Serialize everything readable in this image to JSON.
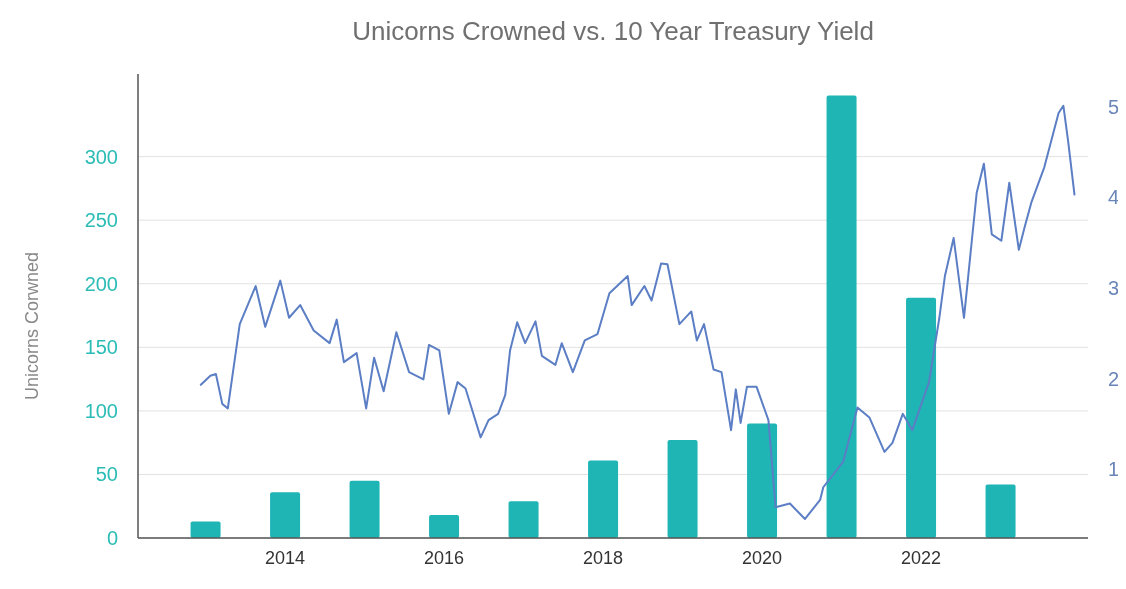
{
  "chart_data": {
    "type": "bar",
    "title": "Unicorns Crowned vs. 10 Year Treasury Yield",
    "ylabel": "Unicorns Corwned",
    "xlim": [
      2012.15,
      2024.1
    ],
    "xticks": [
      2014,
      2016,
      2018,
      2020,
      2022
    ],
    "ylim": [
      0,
      365
    ],
    "yticks": [
      0,
      50,
      100,
      150,
      200,
      250,
      300
    ],
    "y2lim": [
      0.24,
      5.36
    ],
    "y2ticks": [
      1,
      2,
      3,
      4,
      5
    ],
    "grid": "y",
    "series": [
      {
        "color": "#1fb5b5",
        "x": [
          2013,
          2014,
          2015,
          2016,
          2017,
          2018,
          2019,
          2020,
          2021,
          2022,
          2023
        ],
        "values": [
          13,
          36,
          45,
          18,
          29,
          61,
          77,
          90,
          348,
          189,
          42
        ]
      },
      {
        "type": "line",
        "axis": "y2",
        "color": "#5b7ec4",
        "x": [
          2012.94,
          2013.06,
          2013.13,
          2013.21,
          2013.28,
          2013.43,
          2013.63,
          2013.75,
          2013.94,
          2014.05,
          2014.19,
          2014.36,
          2014.56,
          2014.65,
          2014.74,
          2014.9,
          2015.02,
          2015.12,
          2015.24,
          2015.4,
          2015.56,
          2015.74,
          2015.81,
          2015.94,
          2016.06,
          2016.17,
          2016.27,
          2016.46,
          2016.56,
          2016.68,
          2016.77,
          2016.83,
          2016.92,
          2017.02,
          2017.15,
          2017.23,
          2017.4,
          2017.48,
          2017.62,
          2017.77,
          2017.93,
          2018.08,
          2018.31,
          2018.36,
          2018.52,
          2018.61,
          2018.73,
          2018.81,
          2018.96,
          2019.11,
          2019.18,
          2019.27,
          2019.39,
          2019.49,
          2019.61,
          2019.67,
          2019.73,
          2019.81,
          2019.93,
          2020.08,
          2020.17,
          2020.35,
          2020.54,
          2020.73,
          2020.77,
          2021.02,
          2021.2,
          2021.35,
          2021.54,
          2021.64,
          2021.77,
          2021.89,
          2022.1,
          2022.23,
          2022.3,
          2022.41,
          2022.54,
          2022.7,
          2022.79,
          2022.89,
          2023.01,
          2023.11,
          2023.23,
          2023.3,
          2023.39,
          2023.55,
          2023.73,
          2023.79,
          2023.85,
          2023.93
        ],
        "values": [
          1.93,
          2.03,
          2.05,
          1.72,
          1.67,
          2.6,
          3.02,
          2.57,
          3.08,
          2.67,
          2.81,
          2.53,
          2.39,
          2.65,
          2.18,
          2.28,
          1.67,
          2.23,
          1.86,
          2.51,
          2.07,
          1.99,
          2.37,
          2.31,
          1.61,
          1.96,
          1.89,
          1.35,
          1.54,
          1.61,
          1.82,
          2.31,
          2.62,
          2.39,
          2.63,
          2.25,
          2.15,
          2.39,
          2.07,
          2.42,
          2.49,
          2.94,
          3.13,
          2.81,
          3.02,
          2.86,
          3.27,
          3.26,
          2.6,
          2.74,
          2.42,
          2.6,
          2.1,
          2.07,
          1.43,
          1.88,
          1.51,
          1.91,
          1.91,
          1.54,
          0.58,
          0.62,
          0.45,
          0.66,
          0.8,
          1.08,
          1.68,
          1.57,
          1.19,
          1.29,
          1.61,
          1.43,
          1.96,
          2.67,
          3.13,
          3.55,
          2.67,
          4.05,
          4.37,
          3.59,
          3.52,
          4.16,
          3.42,
          3.66,
          3.95,
          4.33,
          4.93,
          5.01,
          4.62,
          4.03
        ]
      }
    ]
  }
}
